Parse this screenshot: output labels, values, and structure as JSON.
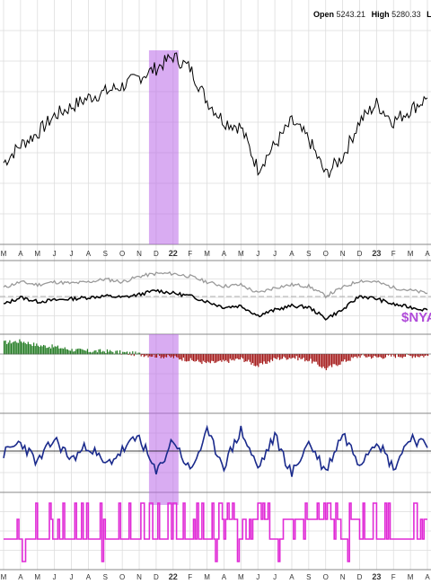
{
  "header": {
    "open_label": "Open",
    "open_value": "5243.21",
    "high_label": "High",
    "high_value": "5280.33",
    "low_label_partial": "Lo"
  },
  "indicator_label": "$NYA",
  "colors": {
    "price": "#000000",
    "highlight": "#b967e8",
    "breadth_upper": "#9a9a9a",
    "breadth_lower": "#000000",
    "positive_bars": "#1f7a1f",
    "negative_bars": "#a31515",
    "oscillator": "#1a2a8c",
    "signal": "#e02ad6",
    "grid": "#dddddd"
  },
  "chart_data": {
    "type": "line",
    "x_months_top": [
      "M",
      "A",
      "M",
      "J",
      "J",
      "A",
      "S",
      "O",
      "N",
      "D",
      "22",
      "F",
      "M",
      "A",
      "M",
      "J",
      "J",
      "A",
      "S",
      "O",
      "N",
      "D",
      "23",
      "F",
      "M",
      "A"
    ],
    "x_months_bottom": [
      "M",
      "A",
      "M",
      "J",
      "J",
      "A",
      "S",
      "O",
      "N",
      "D",
      "22",
      "F",
      "M",
      "A",
      "M",
      "J",
      "J",
      "A",
      "S",
      "O",
      "N",
      "D",
      "23",
      "F",
      "M",
      "A"
    ],
    "highlight_months": [
      "D",
      "22"
    ],
    "series": [
      {
        "panel": "price",
        "values": [
          64,
          70,
          74,
          80,
          83,
          86,
          88,
          90,
          93,
          96,
          100,
          96,
          85,
          78,
          76,
          62,
          70,
          78,
          72,
          60,
          66,
          78,
          84,
          78,
          82,
          86
        ]
      },
      {
        "panel": "breadth-upper",
        "values": [
          62,
          66,
          64,
          66,
          65,
          66,
          68,
          66,
          70,
          72,
          72,
          70,
          66,
          63,
          64,
          58,
          62,
          64,
          63,
          56,
          62,
          67,
          66,
          62,
          60,
          58
        ]
      },
      {
        "panel": "breadth-lower",
        "values": [
          50,
          55,
          52,
          53,
          54,
          55,
          56,
          55,
          57,
          60,
          58,
          56,
          52,
          48,
          49,
          42,
          46,
          49,
          48,
          40,
          46,
          56,
          54,
          50,
          48,
          46
        ]
      },
      {
        "panel": "advance-decline",
        "values": [
          8,
          9,
          6,
          5,
          3,
          2,
          2,
          1,
          0,
          -1,
          -2,
          -4,
          -6,
          -5,
          -3,
          -8,
          -3,
          -2,
          -4,
          -10,
          -5,
          -1,
          -2,
          -1,
          -1,
          -1
        ]
      },
      {
        "panel": "oscillator",
        "values": [
          0,
          8,
          -6,
          10,
          -4,
          6,
          -8,
          2,
          12,
          -14,
          10,
          -12,
          14,
          -8,
          16,
          -10,
          12,
          -14,
          8,
          -12,
          14,
          -6,
          10,
          -10,
          12,
          4
        ]
      },
      {
        "panel": "signal",
        "values": [
          1,
          0,
          1,
          0,
          1,
          1,
          0,
          1,
          1,
          1,
          1,
          0,
          1,
          -1,
          0,
          -1,
          0,
          -1,
          -1,
          -1,
          0,
          -1,
          1,
          1,
          1,
          -1
        ]
      }
    ]
  }
}
